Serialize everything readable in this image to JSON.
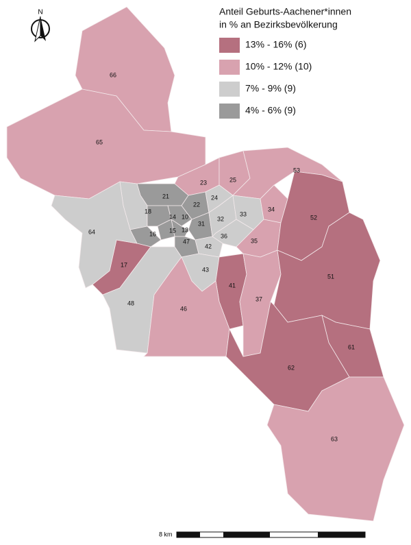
{
  "title_lines": [
    "Anteil Geburts-Aachener*innen",
    "in % an Bezirksbevölkerung"
  ],
  "legend": [
    {
      "label": "13% - 16% (6)",
      "color": "#b5707f"
    },
    {
      "label": "10% - 12% (10)",
      "color": "#d8a2af"
    },
    {
      "label": "7% - 9% (9)",
      "color": "#cdcdcd"
    },
    {
      "label": "4% - 6% (9)",
      "color": "#9a9a9a"
    }
  ],
  "districts": [
    {
      "label": "66",
      "color": "#d8a2af"
    },
    {
      "label": "65",
      "color": "#d8a2af"
    },
    {
      "label": "23",
      "color": "#d8a2af"
    },
    {
      "label": "25",
      "color": "#d8a2af"
    },
    {
      "label": "53",
      "color": "#d8a2af"
    },
    {
      "label": "21",
      "color": "#9a9a9a"
    },
    {
      "label": "22",
      "color": "#9a9a9a"
    },
    {
      "label": "24",
      "color": "#cdcdcd"
    },
    {
      "label": "18",
      "color": "#cdcdcd"
    },
    {
      "label": "14",
      "color": "#9a9a9a"
    },
    {
      "label": "10",
      "color": "#9a9a9a"
    },
    {
      "label": "31",
      "color": "#9a9a9a"
    },
    {
      "label": "32",
      "color": "#cdcdcd"
    },
    {
      "label": "33",
      "color": "#cdcdcd"
    },
    {
      "label": "13",
      "color": "#9a9a9a"
    },
    {
      "label": "15",
      "color": "#9a9a9a"
    },
    {
      "label": "16",
      "color": "#9a9a9a"
    },
    {
      "label": "47",
      "color": "#9a9a9a"
    },
    {
      "label": "36",
      "color": "#cdcdcd"
    },
    {
      "label": "42",
      "color": "#cdcdcd"
    },
    {
      "label": "34",
      "color": "#d8a2af"
    },
    {
      "label": "35",
      "color": "#d8a2af"
    },
    {
      "label": "17",
      "color": "#b5707f"
    },
    {
      "label": "64",
      "color": "#cdcdcd"
    },
    {
      "label": "48",
      "color": "#cdcdcd"
    },
    {
      "label": "43",
      "color": "#cdcdcd"
    },
    {
      "label": "41",
      "color": "#b5707f"
    },
    {
      "label": "37",
      "color": "#d8a2af"
    },
    {
      "label": "46",
      "color": "#d8a2af"
    },
    {
      "label": "52",
      "color": "#b5707f"
    },
    {
      "label": "51",
      "color": "#b5707f"
    },
    {
      "label": "61",
      "color": "#b5707f"
    },
    {
      "label": "62",
      "color": "#b5707f"
    },
    {
      "label": "63",
      "color": "#d8a2af"
    }
  ],
  "north": "N",
  "scale": "8 km"
}
